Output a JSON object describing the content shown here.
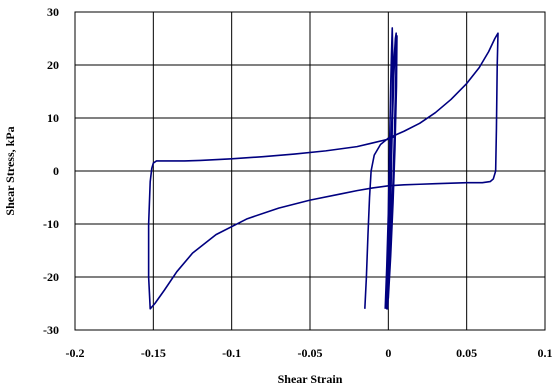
{
  "chart_data": {
    "type": "line",
    "title": "",
    "xlabel": "Shear Strain",
    "ylabel": "Shear Stress, kPa",
    "xlim": [
      -0.2,
      0.1
    ],
    "ylim": [
      -30,
      30
    ],
    "x_ticks": [
      "-0.2",
      "-0.15",
      "-0.1",
      "-0.05",
      "0",
      "0.05",
      "0.1"
    ],
    "y_ticks": [
      "30",
      "20",
      "10",
      "0",
      "-10",
      "-20",
      "-30"
    ],
    "grid": true,
    "legend": "none",
    "series": [
      {
        "color": "#000080",
        "points": [
          [
            -0.015,
            -26
          ],
          [
            -0.014,
            -20
          ],
          [
            -0.013,
            -12
          ],
          [
            -0.012,
            -5
          ],
          [
            -0.011,
            0
          ],
          [
            -0.009,
            3
          ],
          [
            -0.005,
            5
          ],
          [
            0.0,
            6.2
          ],
          [
            0.01,
            7.5
          ],
          [
            0.02,
            9
          ],
          [
            0.03,
            11
          ],
          [
            0.04,
            13.5
          ],
          [
            0.05,
            16.5
          ],
          [
            0.058,
            19.5
          ],
          [
            0.064,
            22.5
          ],
          [
            0.068,
            25
          ],
          [
            0.07,
            26
          ],
          [
            0.0695,
            20
          ],
          [
            0.069,
            8
          ],
          [
            0.0685,
            0
          ],
          [
            0.067,
            -1.5
          ],
          [
            0.065,
            -2
          ],
          [
            0.06,
            -2.2
          ],
          [
            0.05,
            -2.2
          ],
          [
            0.04,
            -2.3
          ],
          [
            0.03,
            -2.4
          ],
          [
            0.02,
            -2.5
          ],
          [
            0.01,
            -2.6
          ],
          [
            0.0,
            -2.8
          ],
          [
            -0.01,
            -3.2
          ],
          [
            -0.02,
            -3.7
          ],
          [
            -0.03,
            -4.3
          ],
          [
            -0.05,
            -5.5
          ],
          [
            -0.07,
            -7
          ],
          [
            -0.09,
            -9
          ],
          [
            -0.11,
            -12
          ],
          [
            -0.125,
            -15.5
          ],
          [
            -0.135,
            -19
          ],
          [
            -0.143,
            -22.5
          ],
          [
            -0.149,
            -25
          ],
          [
            -0.152,
            -26
          ],
          [
            -0.153,
            -20
          ],
          [
            -0.153,
            -10
          ],
          [
            -0.152,
            -2
          ],
          [
            -0.151,
            0.5
          ],
          [
            -0.15,
            1.5
          ],
          [
            -0.148,
            1.9
          ],
          [
            -0.14,
            1.9
          ],
          [
            -0.13,
            1.9
          ],
          [
            -0.12,
            2
          ],
          [
            -0.1,
            2.3
          ],
          [
            -0.08,
            2.7
          ],
          [
            -0.06,
            3.2
          ],
          [
            -0.04,
            3.8
          ],
          [
            -0.02,
            4.6
          ],
          [
            -0.01,
            5.3
          ],
          [
            0.0,
            6.0
          ],
          [
            0.004,
            6.5
          ]
        ]
      },
      {
        "color": "#000080",
        "points": [
          [
            -0.002,
            -26
          ],
          [
            -0.001,
            -18
          ],
          [
            0.0,
            -8
          ],
          [
            0.0005,
            0
          ],
          [
            0.001,
            8
          ],
          [
            0.0015,
            16
          ],
          [
            0.002,
            22
          ],
          [
            0.0025,
            27
          ],
          [
            0.0028,
            22
          ],
          [
            0.0025,
            12
          ],
          [
            0.002,
            2
          ],
          [
            0.0015,
            -8
          ],
          [
            0.001,
            -16
          ],
          [
            0.0,
            -22
          ],
          [
            -0.001,
            -26
          ],
          [
            -0.0005,
            -18
          ],
          [
            0.0005,
            -8
          ],
          [
            0.0015,
            2
          ],
          [
            0.0025,
            12
          ],
          [
            0.0035,
            20
          ],
          [
            0.0045,
            25
          ],
          [
            0.005,
            26
          ],
          [
            0.0048,
            18
          ],
          [
            0.004,
            8
          ],
          [
            0.003,
            -2
          ],
          [
            0.0018,
            -12
          ],
          [
            0.0005,
            -20
          ],
          [
            -0.0005,
            -26
          ],
          [
            0.0005,
            -16
          ],
          [
            0.0015,
            -4
          ],
          [
            0.0025,
            8
          ],
          [
            0.0035,
            18
          ],
          [
            0.0045,
            24
          ],
          [
            0.0055,
            25.5
          ],
          [
            0.0052,
            16
          ],
          [
            0.0042,
            4
          ],
          [
            0.003,
            -6
          ],
          [
            0.0015,
            -16
          ],
          [
            0.0,
            -24
          ],
          [
            -0.001,
            -25
          ]
        ]
      }
    ]
  }
}
